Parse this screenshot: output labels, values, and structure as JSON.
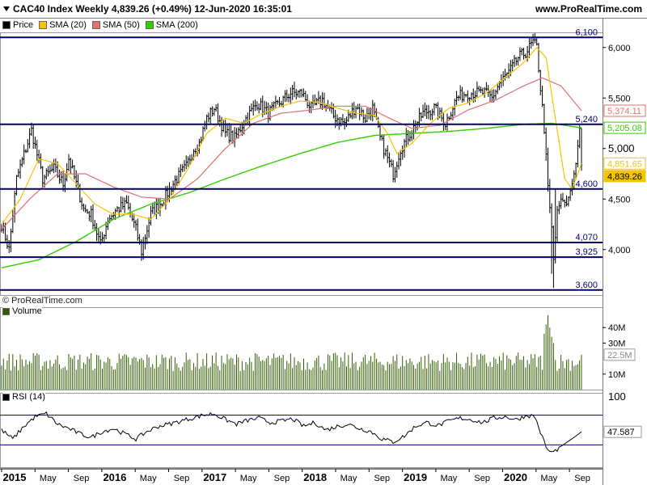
{
  "header": {
    "title": "CAC40 Index Weekly 4,839.26 (+0.49%) 12-Jun-2020 16:35:01",
    "site": "www.ProRealTime.com"
  },
  "legend": {
    "price": "Price",
    "sma20": "SMA (20)",
    "sma50": "SMA (50)",
    "sma200": "SMA (200)"
  },
  "copyright": "© ProRealTime.com",
  "volume_label": "Volume",
  "rsi_label": "RSI (14)",
  "colors": {
    "price": "#000000",
    "sma20": "#f5c400",
    "sma50": "#e07070",
    "sma200": "#33cc00",
    "hline": "#000066",
    "volume": "#2e5e00"
  },
  "chart_data": [
    {
      "type": "candlestick",
      "title": "CAC40 Index Weekly",
      "ylim": [
        3550,
        6150
      ],
      "y_ticks": [
        "6,000",
        "5,500",
        "5,000",
        "4,500",
        "4,000"
      ],
      "y_tick_values": [
        6000,
        5500,
        5000,
        4500,
        4000
      ],
      "x_ticks": [
        "2015",
        "May",
        "Sep",
        "2016",
        "May",
        "Sep",
        "2017",
        "May",
        "Sep",
        "2018",
        "May",
        "Sep",
        "2019",
        "May",
        "Sep",
        "2020",
        "May",
        "Sep"
      ],
      "horizontal_levels": [
        {
          "value": 6100,
          "label": "6,100"
        },
        {
          "value": 5240,
          "label": "5,240"
        },
        {
          "value": 4600,
          "label": "4,600"
        },
        {
          "value": 4070,
          "label": "4,070"
        },
        {
          "value": 3925,
          "label": "3,925"
        },
        {
          "value": 3600,
          "label": "3,600"
        }
      ],
      "value_tags": [
        {
          "label": "5,374.11",
          "value": 5374.11,
          "color": "#e07070"
        },
        {
          "label": "5,205.08",
          "value": 5205.08,
          "color": "#33cc00"
        },
        {
          "label": "4,851.65",
          "value": 4851.65,
          "color": "#f5c400"
        },
        {
          "label": "4,839.26",
          "value": 4839.26,
          "color": "#f5c400"
        }
      ],
      "price_anchors": [
        [
          0,
          4250
        ],
        [
          4,
          4000
        ],
        [
          8,
          4700
        ],
        [
          13,
          5000
        ],
        [
          16,
          5180
        ],
        [
          22,
          4700
        ],
        [
          28,
          4800
        ],
        [
          33,
          4650
        ],
        [
          36,
          4900
        ],
        [
          44,
          4400
        ],
        [
          48,
          4350
        ],
        [
          53,
          4050
        ],
        [
          57,
          4300
        ],
        [
          62,
          4400
        ],
        [
          67,
          4450
        ],
        [
          72,
          4200
        ],
        [
          75,
          3980
        ],
        [
          80,
          4350
        ],
        [
          87,
          4500
        ],
        [
          93,
          4680
        ],
        [
          99,
          4820
        ],
        [
          103,
          5000
        ],
        [
          106,
          5050
        ],
        [
          110,
          5300
        ],
        [
          114,
          5400
        ],
        [
          120,
          5150
        ],
        [
          125,
          5100
        ],
        [
          130,
          5270
        ],
        [
          137,
          5450
        ],
        [
          143,
          5350
        ],
        [
          149,
          5450
        ],
        [
          155,
          5550
        ],
        [
          161,
          5550
        ],
        [
          166,
          5400
        ],
        [
          172,
          5480
        ],
        [
          178,
          5320
        ],
        [
          184,
          5250
        ],
        [
          190,
          5420
        ],
        [
          195,
          5300
        ],
        [
          199,
          5400
        ],
        [
          203,
          5100
        ],
        [
          207,
          4900
        ],
        [
          210,
          4750
        ],
        [
          214,
          5000
        ],
        [
          219,
          5150
        ],
        [
          226,
          5350
        ],
        [
          232,
          5400
        ],
        [
          238,
          5250
        ],
        [
          244,
          5500
        ],
        [
          249,
          5550
        ],
        [
          255,
          5550
        ],
        [
          259,
          5550
        ],
        [
          263,
          5500
        ],
        [
          267,
          5650
        ],
        [
          272,
          5750
        ],
        [
          277,
          5900
        ],
        [
          281,
          5950
        ],
        [
          285,
          6050
        ],
        [
          287,
          6000
        ],
        [
          289,
          5600
        ],
        [
          291,
          5200
        ],
        [
          293,
          4600
        ],
        [
          295,
          4200
        ],
        [
          296,
          3900
        ],
        [
          298,
          4350
        ],
        [
          300,
          4500
        ],
        [
          303,
          4450
        ],
        [
          306,
          4650
        ],
        [
          308,
          4850
        ],
        [
          310,
          5200
        ],
        [
          311,
          4839
        ]
      ],
      "sma20": [
        [
          0,
          4250
        ],
        [
          10,
          4500
        ],
        [
          20,
          4900
        ],
        [
          30,
          4850
        ],
        [
          40,
          4650
        ],
        [
          50,
          4450
        ],
        [
          60,
          4350
        ],
        [
          70,
          4350
        ],
        [
          80,
          4300
        ],
        [
          90,
          4500
        ],
        [
          100,
          4800
        ],
        [
          110,
          5150
        ],
        [
          120,
          5300
        ],
        [
          130,
          5250
        ],
        [
          140,
          5350
        ],
        [
          150,
          5420
        ],
        [
          160,
          5470
        ],
        [
          170,
          5460
        ],
        [
          180,
          5400
        ],
        [
          190,
          5350
        ],
        [
          200,
          5330
        ],
        [
          207,
          5150
        ],
        [
          212,
          4950
        ],
        [
          220,
          5050
        ],
        [
          230,
          5250
        ],
        [
          240,
          5400
        ],
        [
          250,
          5450
        ],
        [
          260,
          5550
        ],
        [
          270,
          5700
        ],
        [
          280,
          5850
        ],
        [
          287,
          6000
        ],
        [
          292,
          5900
        ],
        [
          297,
          5300
        ],
        [
          302,
          4700
        ],
        [
          306,
          4600
        ],
        [
          311,
          4851
        ]
      ],
      "sma50": [
        [
          0,
          4200
        ],
        [
          15,
          4500
        ],
        [
          30,
          4750
        ],
        [
          45,
          4750
        ],
        [
          60,
          4620
        ],
        [
          75,
          4520
        ],
        [
          90,
          4500
        ],
        [
          105,
          4700
        ],
        [
          120,
          5000
        ],
        [
          135,
          5250
        ],
        [
          150,
          5350
        ],
        [
          165,
          5380
        ],
        [
          180,
          5420
        ],
        [
          195,
          5420
        ],
        [
          208,
          5300
        ],
        [
          220,
          5200
        ],
        [
          235,
          5230
        ],
        [
          250,
          5380
        ],
        [
          265,
          5480
        ],
        [
          280,
          5620
        ],
        [
          290,
          5700
        ],
        [
          300,
          5620
        ],
        [
          311,
          5374
        ]
      ],
      "sma200": [
        [
          0,
          3820
        ],
        [
          20,
          3900
        ],
        [
          40,
          4080
        ],
        [
          60,
          4300
        ],
        [
          80,
          4450
        ],
        [
          100,
          4560
        ],
        [
          120,
          4700
        ],
        [
          140,
          4830
        ],
        [
          160,
          4950
        ],
        [
          180,
          5060
        ],
        [
          200,
          5130
        ],
        [
          220,
          5150
        ],
        [
          240,
          5170
        ],
        [
          260,
          5200
        ],
        [
          280,
          5240
        ],
        [
          295,
          5250
        ],
        [
          311,
          5205
        ]
      ],
      "last_week_candle": {
        "open": 4800,
        "high": 5200,
        "low": 4780,
        "close": 4839.26
      }
    },
    {
      "type": "bar",
      "title": "Volume",
      "y_ticks": [
        "40M",
        "30M",
        "10M"
      ],
      "y_tick_values": [
        40,
        30,
        10
      ],
      "last_value_label": "22.5M",
      "last_value": 22.5,
      "ylim_millions": [
        0,
        50
      ],
      "x_start_index": 0,
      "x_end_index": 311,
      "typical_range_millions": [
        12,
        24
      ],
      "spike_values_millions": [
        [
          291,
          36
        ],
        [
          292,
          42
        ],
        [
          293,
          48
        ],
        [
          294,
          40
        ],
        [
          295,
          34
        ],
        [
          296,
          30
        ]
      ]
    },
    {
      "type": "line",
      "title": "RSI (14)",
      "y_tick_top_label": "100",
      "y_tick_top_value": 100,
      "ylim": [
        0,
        100
      ],
      "upper_band": 70,
      "lower_band": 30,
      "last_value_label": "47.587",
      "last_value": 47.587,
      "rsi_anchors": [
        [
          0,
          50
        ],
        [
          6,
          38
        ],
        [
          12,
          55
        ],
        [
          18,
          68
        ],
        [
          24,
          72
        ],
        [
          30,
          58
        ],
        [
          36,
          52
        ],
        [
          42,
          45
        ],
        [
          48,
          40
        ],
        [
          54,
          48
        ],
        [
          60,
          52
        ],
        [
          66,
          45
        ],
        [
          72,
          38
        ],
        [
          78,
          48
        ],
        [
          84,
          55
        ],
        [
          90,
          58
        ],
        [
          96,
          62
        ],
        [
          102,
          66
        ],
        [
          108,
          70
        ],
        [
          114,
          72
        ],
        [
          120,
          64
        ],
        [
          126,
          58
        ],
        [
          132,
          63
        ],
        [
          138,
          66
        ],
        [
          144,
          60
        ],
        [
          150,
          62
        ],
        [
          156,
          65
        ],
        [
          162,
          55
        ],
        [
          168,
          60
        ],
        [
          174,
          50
        ],
        [
          180,
          55
        ],
        [
          186,
          58
        ],
        [
          192,
          52
        ],
        [
          198,
          48
        ],
        [
          204,
          38
        ],
        [
          210,
          34
        ],
        [
          216,
          42
        ],
        [
          222,
          55
        ],
        [
          228,
          60
        ],
        [
          234,
          56
        ],
        [
          240,
          62
        ],
        [
          246,
          66
        ],
        [
          252,
          64
        ],
        [
          258,
          60
        ],
        [
          264,
          66
        ],
        [
          270,
          68
        ],
        [
          276,
          64
        ],
        [
          282,
          70
        ],
        [
          286,
          68
        ],
        [
          290,
          40
        ],
        [
          293,
          22
        ],
        [
          296,
          20
        ],
        [
          300,
          28
        ],
        [
          304,
          35
        ],
        [
          308,
          42
        ],
        [
          311,
          47.587
        ]
      ]
    }
  ]
}
